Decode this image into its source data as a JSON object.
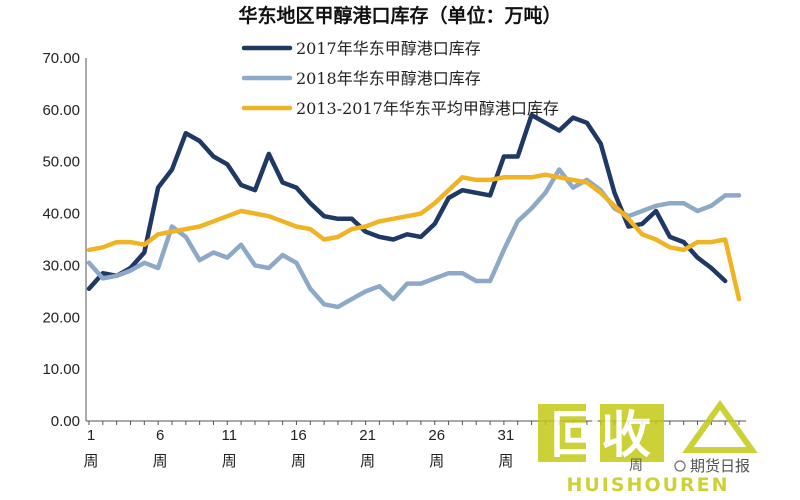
{
  "chart_data": {
    "type": "line",
    "title": "华东地区甲醇港口库存（单位：万吨）",
    "ylim": [
      0,
      70
    ],
    "yticks": [
      "0.00",
      "10.00",
      "20.00",
      "30.00",
      "40.00",
      "50.00",
      "60.00",
      "70.00"
    ],
    "xticks": [
      {
        "week": 1,
        "label": [
          "1",
          "周"
        ]
      },
      {
        "week": 6,
        "label": [
          "6",
          "周"
        ]
      },
      {
        "week": 11,
        "label": [
          "11",
          "周"
        ]
      },
      {
        "week": 16,
        "label": [
          "16",
          "周"
        ]
      },
      {
        "week": 21,
        "label": [
          "21",
          "周"
        ]
      },
      {
        "week": 26,
        "label": [
          "26",
          "周"
        ]
      },
      {
        "week": 31,
        "label": [
          "31",
          "周"
        ]
      }
    ],
    "x_range": [
      1,
      48
    ],
    "grid": false,
    "legend_position": "top",
    "series": [
      {
        "name": "2017年华东甲醇港口库存",
        "color": "#1f3864",
        "x": [
          1,
          2,
          3,
          4,
          5,
          6,
          7,
          8,
          9,
          10,
          11,
          12,
          13,
          14,
          15,
          16,
          17,
          18,
          19,
          20,
          21,
          22,
          23,
          24,
          25,
          26,
          27,
          28,
          29,
          30,
          31,
          32,
          33,
          34,
          35,
          36,
          37,
          38,
          39,
          40,
          41,
          42,
          43,
          44,
          45,
          46,
          47
        ],
        "values": [
          25.5,
          28.5,
          28.0,
          29.5,
          32.5,
          45.0,
          48.5,
          55.5,
          54.0,
          51.0,
          49.5,
          45.5,
          44.5,
          51.5,
          46.0,
          45.0,
          42.0,
          39.5,
          39.0,
          39.0,
          36.5,
          35.5,
          35.0,
          36.0,
          35.5,
          38.0,
          43.0,
          44.5,
          44.0,
          43.5,
          51.0,
          51.0,
          59.0,
          57.5,
          56.0,
          58.5,
          57.5,
          53.5,
          44.0,
          37.5,
          38.0,
          40.5,
          35.5,
          34.5,
          31.5,
          29.5,
          27.0
        ]
      },
      {
        "name": "2018年华东甲醇港口库存",
        "color": "#8ea9c8",
        "x": [
          1,
          2,
          3,
          4,
          5,
          6,
          7,
          8,
          9,
          10,
          11,
          12,
          13,
          14,
          15,
          16,
          17,
          18,
          19,
          20,
          21,
          22,
          23,
          24,
          25,
          26,
          27,
          28,
          29,
          30,
          31,
          32,
          33,
          34,
          35,
          36,
          37,
          38,
          39,
          40,
          41,
          42,
          43,
          44,
          45,
          46,
          47,
          48
        ],
        "values": [
          30.5,
          27.5,
          28.0,
          29.0,
          30.5,
          29.5,
          37.5,
          35.5,
          31.0,
          32.5,
          31.5,
          34.0,
          30.0,
          29.5,
          32.0,
          30.5,
          25.5,
          22.5,
          22.0,
          23.5,
          25.0,
          26.0,
          23.5,
          26.5,
          26.5,
          27.5,
          28.5,
          28.5,
          27.0,
          27.0,
          33.0,
          38.5,
          41.0,
          44.0,
          48.5,
          45.0,
          46.5,
          44.5,
          41.0,
          39.5,
          40.5,
          41.5,
          42.0,
          42.0,
          40.5,
          41.5,
          43.5,
          43.5
        ]
      },
      {
        "name": "2013-2017年华东平均甲醇港口库存",
        "color": "#f0b323",
        "x": [
          1,
          2,
          3,
          4,
          5,
          6,
          7,
          8,
          9,
          10,
          11,
          12,
          13,
          14,
          15,
          16,
          17,
          18,
          19,
          20,
          21,
          22,
          23,
          24,
          25,
          26,
          27,
          28,
          29,
          30,
          31,
          32,
          33,
          34,
          35,
          36,
          37,
          38,
          39,
          40,
          41,
          42,
          43,
          44,
          45,
          46,
          47,
          48
        ],
        "values": [
          33.0,
          33.5,
          34.5,
          34.5,
          34.0,
          36.0,
          36.5,
          37.0,
          37.5,
          38.5,
          39.5,
          40.5,
          40.0,
          39.5,
          38.5,
          37.5,
          37.0,
          35.0,
          35.5,
          37.0,
          37.5,
          38.5,
          39.0,
          39.5,
          40.0,
          42.0,
          44.5,
          47.0,
          46.5,
          46.5,
          47.0,
          47.0,
          47.0,
          47.5,
          47.0,
          46.5,
          46.0,
          44.0,
          41.5,
          39.0,
          36.0,
          35.0,
          33.5,
          33.0,
          34.5,
          34.5,
          35.0,
          23.5
        ]
      }
    ]
  },
  "watermark": {
    "main_text": "回收",
    "sub_text": "HUISHOUREN",
    "corner_text": "期货日报",
    "corner_partial": "周"
  }
}
